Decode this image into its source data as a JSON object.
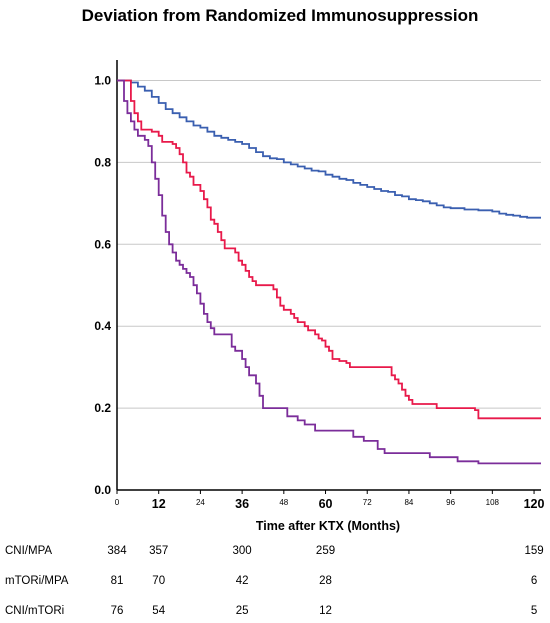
{
  "chart_data": {
    "type": "line",
    "title": "Deviation from Randomized Immunosuppression",
    "xlabel": "Time after KTX (Months)",
    "ylabel": "",
    "xlim": [
      0,
      122
    ],
    "ylim": [
      0,
      1.05
    ],
    "y_ticks": [
      "0.0",
      "0.2",
      "0.4",
      "0.6",
      "0.8",
      "1.0"
    ],
    "y_tick_values": [
      0,
      0.2,
      0.4,
      0.6,
      0.8,
      1.0
    ],
    "x_ticks": [
      {
        "value": 0,
        "label": "0",
        "major": false
      },
      {
        "value": 12,
        "label": "12",
        "major": true
      },
      {
        "value": 24,
        "label": "24",
        "major": false
      },
      {
        "value": 36,
        "label": "36",
        "major": true
      },
      {
        "value": 48,
        "label": "48",
        "major": false
      },
      {
        "value": 60,
        "label": "60",
        "major": true
      },
      {
        "value": 72,
        "label": "72",
        "major": false
      },
      {
        "value": 84,
        "label": "84",
        "major": false
      },
      {
        "value": 96,
        "label": "96",
        "major": false
      },
      {
        "value": 108,
        "label": "108",
        "major": false
      },
      {
        "value": 120,
        "label": "120",
        "major": true
      }
    ],
    "grid": "horizontal",
    "series": [
      {
        "key": "cni_mpa",
        "color": "#3a5fb0",
        "points": [
          [
            0,
            1.0
          ],
          [
            2,
            1.0
          ],
          [
            4,
            0.995
          ],
          [
            6,
            0.985
          ],
          [
            8,
            0.975
          ],
          [
            10,
            0.96
          ],
          [
            12,
            0.945
          ],
          [
            14,
            0.93
          ],
          [
            16,
            0.92
          ],
          [
            18,
            0.91
          ],
          [
            20,
            0.9
          ],
          [
            22,
            0.89
          ],
          [
            24,
            0.885
          ],
          [
            26,
            0.875
          ],
          [
            28,
            0.865
          ],
          [
            30,
            0.86
          ],
          [
            32,
            0.855
          ],
          [
            34,
            0.85
          ],
          [
            36,
            0.845
          ],
          [
            38,
            0.835
          ],
          [
            40,
            0.825
          ],
          [
            42,
            0.815
          ],
          [
            44,
            0.81
          ],
          [
            46,
            0.808
          ],
          [
            48,
            0.8
          ],
          [
            50,
            0.795
          ],
          [
            52,
            0.79
          ],
          [
            54,
            0.785
          ],
          [
            56,
            0.78
          ],
          [
            58,
            0.778
          ],
          [
            60,
            0.77
          ],
          [
            62,
            0.765
          ],
          [
            64,
            0.76
          ],
          [
            66,
            0.757
          ],
          [
            68,
            0.75
          ],
          [
            70,
            0.745
          ],
          [
            72,
            0.74
          ],
          [
            74,
            0.735
          ],
          [
            76,
            0.73
          ],
          [
            78,
            0.728
          ],
          [
            80,
            0.72
          ],
          [
            82,
            0.717
          ],
          [
            84,
            0.71
          ],
          [
            86,
            0.708
          ],
          [
            88,
            0.705
          ],
          [
            90,
            0.7
          ],
          [
            92,
            0.695
          ],
          [
            94,
            0.69
          ],
          [
            96,
            0.688
          ],
          [
            100,
            0.685
          ],
          [
            104,
            0.683
          ],
          [
            108,
            0.68
          ],
          [
            110,
            0.675
          ],
          [
            112,
            0.672
          ],
          [
            114,
            0.67
          ],
          [
            116,
            0.667
          ],
          [
            118,
            0.665
          ],
          [
            122,
            0.665
          ]
        ]
      },
      {
        "key": "mtori_mpa",
        "color": "#e8194a",
        "points": [
          [
            0,
            1.0
          ],
          [
            3,
            1.0
          ],
          [
            4,
            0.95
          ],
          [
            5,
            0.92
          ],
          [
            6,
            0.9
          ],
          [
            7,
            0.88
          ],
          [
            10,
            0.875
          ],
          [
            12,
            0.865
          ],
          [
            13,
            0.85
          ],
          [
            16,
            0.845
          ],
          [
            17,
            0.835
          ],
          [
            18,
            0.82
          ],
          [
            19,
            0.8
          ],
          [
            20,
            0.775
          ],
          [
            21,
            0.765
          ],
          [
            22,
            0.745
          ],
          [
            24,
            0.73
          ],
          [
            25,
            0.71
          ],
          [
            26,
            0.69
          ],
          [
            27,
            0.66
          ],
          [
            28,
            0.65
          ],
          [
            29,
            0.63
          ],
          [
            30,
            0.61
          ],
          [
            31,
            0.59
          ],
          [
            34,
            0.58
          ],
          [
            35,
            0.56
          ],
          [
            36,
            0.55
          ],
          [
            37,
            0.535
          ],
          [
            38,
            0.52
          ],
          [
            39,
            0.51
          ],
          [
            40,
            0.5
          ],
          [
            45,
            0.49
          ],
          [
            46,
            0.47
          ],
          [
            47,
            0.45
          ],
          [
            48,
            0.44
          ],
          [
            50,
            0.43
          ],
          [
            51,
            0.42
          ],
          [
            52,
            0.41
          ],
          [
            54,
            0.4
          ],
          [
            55,
            0.39
          ],
          [
            57,
            0.38
          ],
          [
            58,
            0.37
          ],
          [
            59,
            0.365
          ],
          [
            60,
            0.35
          ],
          [
            61,
            0.34
          ],
          [
            62,
            0.32
          ],
          [
            64,
            0.315
          ],
          [
            66,
            0.31
          ],
          [
            67,
            0.3
          ],
          [
            78,
            0.3
          ],
          [
            79,
            0.28
          ],
          [
            80,
            0.27
          ],
          [
            81,
            0.26
          ],
          [
            82,
            0.245
          ],
          [
            83,
            0.23
          ],
          [
            84,
            0.22
          ],
          [
            85,
            0.21
          ],
          [
            92,
            0.2
          ],
          [
            103,
            0.195
          ],
          [
            104,
            0.175
          ],
          [
            122,
            0.175
          ]
        ]
      },
      {
        "key": "cni_mtori",
        "color": "#7b2d9a",
        "points": [
          [
            0,
            1.0
          ],
          [
            1,
            1.0
          ],
          [
            2,
            0.95
          ],
          [
            3,
            0.92
          ],
          [
            4,
            0.9
          ],
          [
            5,
            0.88
          ],
          [
            6,
            0.865
          ],
          [
            8,
            0.855
          ],
          [
            9,
            0.84
          ],
          [
            10,
            0.8
          ],
          [
            11,
            0.76
          ],
          [
            12,
            0.72
          ],
          [
            13,
            0.67
          ],
          [
            14,
            0.63
          ],
          [
            15,
            0.6
          ],
          [
            16,
            0.58
          ],
          [
            17,
            0.56
          ],
          [
            18,
            0.55
          ],
          [
            19,
            0.54
          ],
          [
            20,
            0.53
          ],
          [
            21,
            0.52
          ],
          [
            22,
            0.5
          ],
          [
            23,
            0.48
          ],
          [
            24,
            0.455
          ],
          [
            25,
            0.43
          ],
          [
            26,
            0.41
          ],
          [
            27,
            0.395
          ],
          [
            28,
            0.38
          ],
          [
            32,
            0.38
          ],
          [
            33,
            0.35
          ],
          [
            34,
            0.34
          ],
          [
            36,
            0.32
          ],
          [
            37,
            0.3
          ],
          [
            38,
            0.28
          ],
          [
            40,
            0.26
          ],
          [
            41,
            0.23
          ],
          [
            42,
            0.2
          ],
          [
            48,
            0.2
          ],
          [
            49,
            0.18
          ],
          [
            52,
            0.17
          ],
          [
            54,
            0.16
          ],
          [
            57,
            0.145
          ],
          [
            66,
            0.145
          ],
          [
            68,
            0.13
          ],
          [
            71,
            0.12
          ],
          [
            75,
            0.1
          ],
          [
            77,
            0.09
          ],
          [
            86,
            0.09
          ],
          [
            90,
            0.08
          ],
          [
            98,
            0.07
          ],
          [
            104,
            0.065
          ],
          [
            122,
            0.065
          ]
        ]
      }
    ],
    "risk_table": {
      "columns_months": [
        0,
        12,
        36,
        60,
        120
      ],
      "rows": [
        {
          "label": "CNI/MPA",
          "values": [
            "384",
            "357",
            "300",
            "259",
            "159"
          ]
        },
        {
          "label": "mTORi/MPA",
          "values": [
            "81",
            "70",
            "42",
            "28",
            "6"
          ]
        },
        {
          "label": "CNI/mTORi",
          "values": [
            "76",
            "54",
            "25",
            "12",
            "5"
          ]
        }
      ]
    }
  }
}
